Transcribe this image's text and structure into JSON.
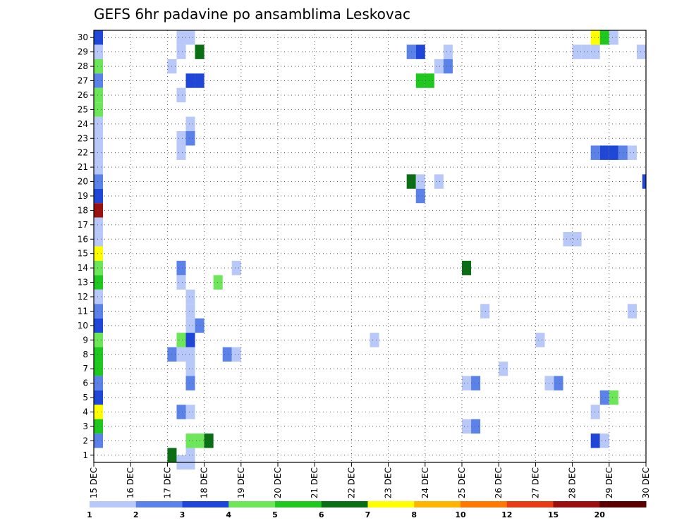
{
  "chart_data": {
    "type": "heatmap",
    "title": "GEFS 6hr padavine po ansamblima Leskovac",
    "x_tick_labels": [
      "15 DEC",
      "16 DEC",
      "17 DEC",
      "18 DEC",
      "19 DEC",
      "20 DEC",
      "21 DEC",
      "22 DEC",
      "23 DEC",
      "24 DEC",
      "25 DEC",
      "26 DEC",
      "27 DEC",
      "28 DEC",
      "29 DEC",
      "30 DEC"
    ],
    "y_tick_labels": [
      "1",
      "2",
      "3",
      "4",
      "5",
      "6",
      "7",
      "8",
      "9",
      "10",
      "11",
      "12",
      "13",
      "14",
      "15",
      "16",
      "17",
      "18",
      "19",
      "20",
      "21",
      "22",
      "23",
      "24",
      "25",
      "26",
      "27",
      "28",
      "29",
      "30"
    ],
    "x_range_days": [
      0,
      15
    ],
    "y_range": [
      0.5,
      30.5
    ],
    "grid": true,
    "colorbar": {
      "labels": [
        "1",
        "2",
        "3",
        "4",
        "5",
        "6",
        "7",
        "8",
        "10",
        "12",
        "15",
        "20"
      ],
      "colors": [
        "#b8c8f8",
        "#5a82e8",
        "#1e46d8",
        "#6ee65a",
        "#1ec81e",
        "#0a6e14",
        "#ffff00",
        "#ffb400",
        "#ff7800",
        "#e83c14",
        "#9a1010",
        "#5a0000"
      ]
    },
    "cells": [
      {
        "day": 0.0,
        "member": 30,
        "value": 3
      },
      {
        "day": 0.0,
        "member": 29,
        "value": 1
      },
      {
        "day": 0.0,
        "member": 28,
        "value": 4
      },
      {
        "day": 0.0,
        "member": 27,
        "value": 2
      },
      {
        "day": 0.0,
        "member": 26,
        "value": 4
      },
      {
        "day": 0.0,
        "member": 25,
        "value": 4
      },
      {
        "day": 0.0,
        "member": 24,
        "value": 1
      },
      {
        "day": 0.0,
        "member": 23,
        "value": 1
      },
      {
        "day": 0.0,
        "member": 22,
        "value": 1
      },
      {
        "day": 0.0,
        "member": 21,
        "value": 1
      },
      {
        "day": 0.0,
        "member": 20,
        "value": 2
      },
      {
        "day": 0.0,
        "member": 19,
        "value": 3
      },
      {
        "day": 0.0,
        "member": 18,
        "value": 15
      },
      {
        "day": 0.0,
        "member": 17,
        "value": 1
      },
      {
        "day": 0.0,
        "member": 16,
        "value": 1
      },
      {
        "day": 0.0,
        "member": 15,
        "value": 7
      },
      {
        "day": 0.0,
        "member": 14,
        "value": 4
      },
      {
        "day": 0.0,
        "member": 13,
        "value": 5
      },
      {
        "day": 0.0,
        "member": 12,
        "value": 1
      },
      {
        "day": 0.0,
        "member": 11,
        "value": 2
      },
      {
        "day": 0.0,
        "member": 10,
        "value": 3
      },
      {
        "day": 0.0,
        "member": 9,
        "value": 4
      },
      {
        "day": 0.0,
        "member": 8,
        "value": 5
      },
      {
        "day": 0.0,
        "member": 7,
        "value": 5
      },
      {
        "day": 0.0,
        "member": 6,
        "value": 2
      },
      {
        "day": 0.0,
        "member": 5,
        "value": 3
      },
      {
        "day": 0.0,
        "member": 4,
        "value": 7
      },
      {
        "day": 0.0,
        "member": 3,
        "value": 5
      },
      {
        "day": 0.0,
        "member": 2,
        "value": 2
      },
      {
        "day": 2.0,
        "member": 28,
        "value": 1
      },
      {
        "day": 2.0,
        "member": 8,
        "value": 2
      },
      {
        "day": 2.0,
        "member": 1,
        "value": 6
      },
      {
        "day": 2.25,
        "member": 30,
        "value": 1
      },
      {
        "day": 2.25,
        "member": 29,
        "value": 1
      },
      {
        "day": 2.25,
        "member": 26,
        "value": 1
      },
      {
        "day": 2.25,
        "member": 23,
        "value": 1
      },
      {
        "day": 2.25,
        "member": 22,
        "value": 1
      },
      {
        "day": 2.25,
        "member": 14,
        "value": 2
      },
      {
        "day": 2.25,
        "member": 13,
        "value": 1
      },
      {
        "day": 2.25,
        "member": 9,
        "value": 4
      },
      {
        "day": 2.25,
        "member": 8,
        "value": 1
      },
      {
        "day": 2.25,
        "member": 4,
        "value": 2
      },
      {
        "day": 2.25,
        "member": 0.5,
        "value": 1
      },
      {
        "day": 2.5,
        "member": 30,
        "value": 1
      },
      {
        "day": 2.5,
        "member": 27,
        "value": 3
      },
      {
        "day": 2.5,
        "member": 24,
        "value": 1
      },
      {
        "day": 2.5,
        "member": 23,
        "value": 2
      },
      {
        "day": 2.5,
        "member": 12,
        "value": 1
      },
      {
        "day": 2.5,
        "member": 11,
        "value": 1
      },
      {
        "day": 2.5,
        "member": 10,
        "value": 1
      },
      {
        "day": 2.5,
        "member": 9,
        "value": 3
      },
      {
        "day": 2.5,
        "member": 8,
        "value": 1
      },
      {
        "day": 2.5,
        "member": 7,
        "value": 1
      },
      {
        "day": 2.5,
        "member": 6,
        "value": 2
      },
      {
        "day": 2.5,
        "member": 4,
        "value": 1
      },
      {
        "day": 2.5,
        "member": 2,
        "value": 4
      },
      {
        "day": 2.5,
        "member": 1,
        "value": 1
      },
      {
        "day": 2.5,
        "member": 0.5,
        "value": 1
      },
      {
        "day": 2.75,
        "member": 29,
        "value": 6
      },
      {
        "day": 2.75,
        "member": 27,
        "value": 3
      },
      {
        "day": 2.75,
        "member": 10,
        "value": 2
      },
      {
        "day": 2.75,
        "member": 2,
        "value": 4
      },
      {
        "day": 3.0,
        "member": 2,
        "value": 6
      },
      {
        "day": 3.25,
        "member": 13,
        "value": 4
      },
      {
        "day": 3.5,
        "member": 8,
        "value": 2
      },
      {
        "day": 3.75,
        "member": 14,
        "value": 1
      },
      {
        "day": 3.75,
        "member": 8,
        "value": 1
      },
      {
        "day": 7.5,
        "member": 9,
        "value": 1
      },
      {
        "day": 8.5,
        "member": 29,
        "value": 2
      },
      {
        "day": 8.5,
        "member": 20,
        "value": 6
      },
      {
        "day": 8.75,
        "member": 29,
        "value": 3
      },
      {
        "day": 8.75,
        "member": 27,
        "value": 5
      },
      {
        "day": 8.75,
        "member": 20,
        "value": 1
      },
      {
        "day": 8.75,
        "member": 19,
        "value": 2
      },
      {
        "day": 9.0,
        "member": 27,
        "value": 5
      },
      {
        "day": 9.25,
        "member": 28,
        "value": 1
      },
      {
        "day": 9.25,
        "member": 20,
        "value": 1
      },
      {
        "day": 9.5,
        "member": 29,
        "value": 1
      },
      {
        "day": 9.5,
        "member": 28,
        "value": 2
      },
      {
        "day": 10.0,
        "member": 14,
        "value": 6
      },
      {
        "day": 10.0,
        "member": 6,
        "value": 1
      },
      {
        "day": 10.0,
        "member": 3,
        "value": 1
      },
      {
        "day": 10.25,
        "member": 6,
        "value": 2
      },
      {
        "day": 10.25,
        "member": 3,
        "value": 2
      },
      {
        "day": 10.5,
        "member": 11,
        "value": 1
      },
      {
        "day": 11.0,
        "member": 7,
        "value": 1
      },
      {
        "day": 12.0,
        "member": 9,
        "value": 1
      },
      {
        "day": 12.25,
        "member": 6,
        "value": 1
      },
      {
        "day": 12.5,
        "member": 6,
        "value": 2
      },
      {
        "day": 12.75,
        "member": 16,
        "value": 1
      },
      {
        "day": 13.0,
        "member": 29,
        "value": 1
      },
      {
        "day": 13.0,
        "member": 16,
        "value": 1
      },
      {
        "day": 13.25,
        "member": 29,
        "value": 1
      },
      {
        "day": 13.5,
        "member": 30,
        "value": 7
      },
      {
        "day": 13.5,
        "member": 29,
        "value": 1
      },
      {
        "day": 13.5,
        "member": 22,
        "value": 2
      },
      {
        "day": 13.5,
        "member": 4,
        "value": 1
      },
      {
        "day": 13.5,
        "member": 2,
        "value": 3
      },
      {
        "day": 13.75,
        "member": 30,
        "value": 5
      },
      {
        "day": 13.75,
        "member": 22,
        "value": 3
      },
      {
        "day": 13.75,
        "member": 5,
        "value": 2
      },
      {
        "day": 13.75,
        "member": 2,
        "value": 1
      },
      {
        "day": 14.0,
        "member": 30,
        "value": 1
      },
      {
        "day": 14.0,
        "member": 22,
        "value": 3
      },
      {
        "day": 14.0,
        "member": 5,
        "value": 4
      },
      {
        "day": 14.25,
        "member": 22,
        "value": 2
      },
      {
        "day": 14.5,
        "member": 22,
        "value": 1
      },
      {
        "day": 14.5,
        "member": 11,
        "value": 1
      },
      {
        "day": 14.75,
        "member": 29,
        "value": 1
      },
      {
        "day": 14.9,
        "member": 20,
        "value": 3
      }
    ]
  }
}
